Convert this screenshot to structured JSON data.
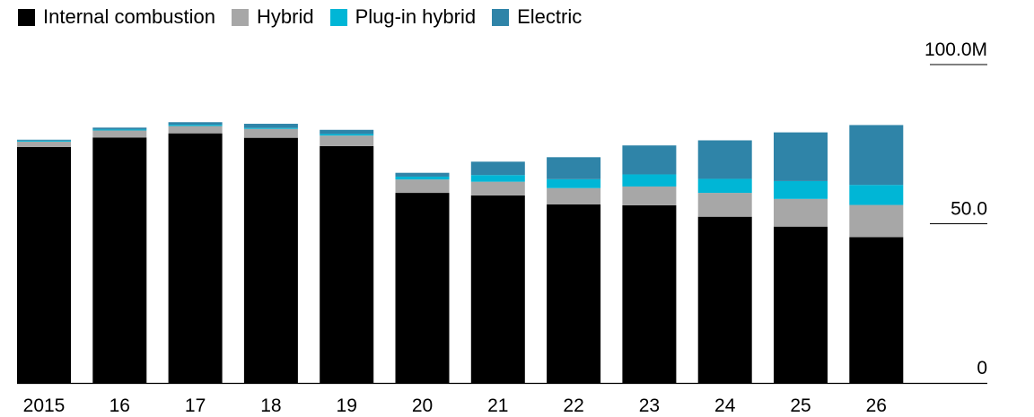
{
  "legend": [
    {
      "label": "Internal combustion",
      "color": "#000000"
    },
    {
      "label": "Hybrid",
      "color": "#a7a7a7"
    },
    {
      "label": "Plug-in hybrid",
      "color": "#00b6d6"
    },
    {
      "label": "Electric",
      "color": "#2f84a8"
    }
  ],
  "chart_data": {
    "type": "bar",
    "stacked": true,
    "categories": [
      "2015",
      "16",
      "17",
      "18",
      "19",
      "20",
      "21",
      "22",
      "23",
      "24",
      "25",
      "26"
    ],
    "series": [
      {
        "name": "Internal combustion",
        "color": "#000000",
        "values": [
          74.1,
          77.1,
          78.4,
          77.0,
          74.4,
          59.7,
          58.9,
          56.1,
          55.8,
          52.2,
          49.1,
          45.8
        ]
      },
      {
        "name": "Hybrid",
        "color": "#a7a7a7",
        "values": [
          1.7,
          2.2,
          2.3,
          2.8,
          3.3,
          4.2,
          4.3,
          5.1,
          5.9,
          7.5,
          8.7,
          10.1
        ]
      },
      {
        "name": "Plug-in hybrid",
        "color": "#00b6d6",
        "values": [
          0.3,
          0.3,
          0.4,
          0.3,
          0.5,
          0.9,
          2.1,
          2.8,
          3.8,
          4.4,
          5.6,
          6.3
        ]
      },
      {
        "name": "Electric",
        "color": "#2f84a8",
        "values": [
          0.3,
          0.6,
          0.8,
          1.3,
          1.3,
          1.2,
          4.2,
          6.9,
          9.1,
          12.1,
          15.3,
          18.8
        ]
      }
    ],
    "ylim": [
      0,
      100
    ],
    "yticks": [
      {
        "value": 0,
        "label": "0"
      },
      {
        "value": 50,
        "label": "50.0"
      },
      {
        "value": 100,
        "label": "100.0M"
      }
    ],
    "grid": false,
    "legend_position": "top-left"
  }
}
